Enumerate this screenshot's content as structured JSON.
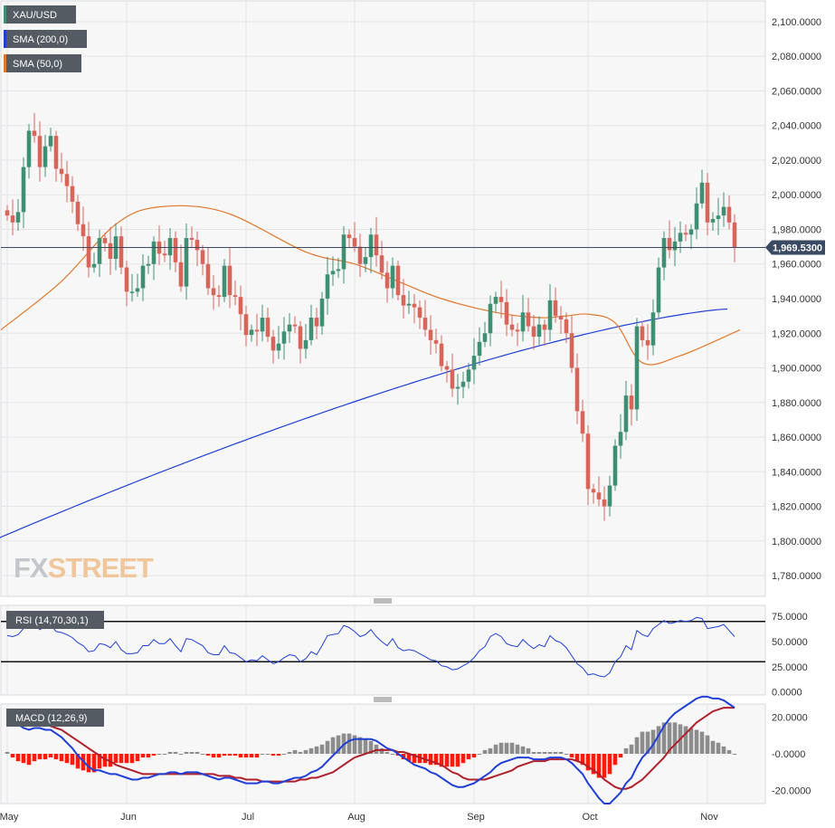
{
  "chart_data": [
    {
      "type": "candlestick",
      "symbol": "XAU/USD",
      "title": "XAU/USD",
      "colors": {
        "up": "#3f8f73",
        "down": "#d8655a",
        "sma200": "#1f3fd6",
        "sma50": "#e2782a",
        "price_tag": "#3a4a63"
      },
      "legend": [
        {
          "label": "XAU/USD",
          "color": "#3f8f73"
        },
        {
          "label": "SMA (200,0)",
          "color": "#1f3fd6"
        },
        {
          "label": "SMA (50,0)",
          "color": "#e2782a"
        }
      ],
      "last_price_label": "1,969.5300",
      "last_price": 1969.53,
      "y_ticks": [
        1780,
        1800,
        1820,
        1840,
        1860,
        1880,
        1900,
        1920,
        1940,
        1960,
        1980,
        2000,
        2020,
        2040,
        2060,
        2080,
        2100
      ],
      "y_tick_labels": [
        "1,780.0000",
        "1,800.0000",
        "1,820.0000",
        "1,840.0000",
        "1,860.0000",
        "1,880.0000",
        "1,900.0000",
        "1,920.0000",
        "1,940.0000",
        "1,960.0000",
        "1,980.0000",
        "2,000.0000",
        "2,020.0000",
        "2,040.0000",
        "2,060.0000",
        "2,080.0000",
        "2,100.0000"
      ],
      "ylim": [
        1768,
        2112
      ],
      "x_months": [
        "May",
        "Jun",
        "Jul",
        "Aug",
        "Sep",
        "Oct",
        "Nov"
      ],
      "month_start_index": [
        0,
        22,
        44,
        64,
        86,
        107,
        129
      ],
      "closes": [
        1988,
        1984,
        1990,
        2016,
        2037,
        2034,
        2016,
        2028,
        2034,
        2015,
        2012,
        2005,
        1996,
        1983,
        1976,
        1958,
        1960,
        1975,
        1972,
        1963,
        1976,
        1958,
        1944,
        1944,
        1946,
        1959,
        1960,
        1973,
        1966,
        1965,
        1975,
        1961,
        1947,
        1975,
        1974,
        1968,
        1960,
        1946,
        1942,
        1941,
        1959,
        1942,
        1941,
        1931,
        1919,
        1922,
        1921,
        1929,
        1918,
        1910,
        1914,
        1921,
        1925,
        1924,
        1911,
        1916,
        1929,
        1924,
        1940,
        1954,
        1956,
        1957,
        1977,
        1975,
        1970,
        1960,
        1964,
        1977,
        1965,
        1955,
        1946,
        1959,
        1942,
        1936,
        1937,
        1935,
        1929,
        1922,
        1916,
        1914,
        1901,
        1899,
        1888,
        1889,
        1892,
        1899,
        1907,
        1915,
        1920,
        1937,
        1941,
        1938,
        1925,
        1922,
        1921,
        1932,
        1924,
        1918,
        1925,
        1922,
        1939,
        1930,
        1928,
        1920,
        1900,
        1875,
        1862,
        1830,
        1828,
        1824,
        1820,
        1832,
        1855,
        1863,
        1884,
        1876,
        1924,
        1916,
        1913,
        1932,
        1958,
        1975,
        1968,
        1973,
        1978,
        1977,
        1980,
        1995,
        2007,
        1984,
        1986,
        1988,
        1993,
        1984,
        1969.53
      ],
      "sma200": {
        "from_index": 0,
        "start": 1802,
        "end": 1934,
        "dip_center": 107,
        "note": "slowly rising"
      },
      "sma50": [
        1922,
        1950,
        1983,
        1993,
        1990,
        1967,
        1960,
        1950,
        1940,
        1932,
        1929,
        1930,
        1931,
        1926,
        1903,
        1907,
        1922
      ],
      "sma50_index": [
        0,
        10,
        20,
        28,
        40,
        55,
        64,
        72,
        80,
        90,
        98,
        103,
        107,
        112,
        117,
        124,
        135
      ],
      "watermark": "FXSTREET"
    },
    {
      "type": "line",
      "title": "RSI (14,70,30,1)",
      "y_tick_labels": [
        "75.0000",
        "50.0000",
        "25.0000",
        "0.0000"
      ],
      "y_ticks": [
        75,
        50,
        25,
        0
      ],
      "overbought": 70,
      "oversold": 30,
      "ylim": [
        -3,
        86
      ],
      "color": "#1f3fd6",
      "values": [
        56,
        55,
        57,
        63,
        69,
        68,
        62,
        65,
        67,
        60,
        59,
        57,
        54,
        49,
        46,
        40,
        41,
        48,
        47,
        44,
        50,
        42,
        38,
        38,
        39,
        46,
        46,
        52,
        48,
        48,
        53,
        46,
        40,
        53,
        52,
        49,
        46,
        39,
        37,
        37,
        46,
        39,
        38,
        34,
        30,
        32,
        31,
        36,
        32,
        28,
        30,
        34,
        37,
        36,
        30,
        33,
        40,
        37,
        46,
        56,
        57,
        58,
        66,
        64,
        60,
        55,
        57,
        62,
        55,
        50,
        46,
        53,
        44,
        41,
        42,
        41,
        38,
        35,
        32,
        31,
        26,
        25,
        22,
        23,
        26,
        29,
        34,
        41,
        45,
        55,
        58,
        55,
        48,
        46,
        45,
        52,
        47,
        43,
        47,
        45,
        56,
        51,
        49,
        44,
        36,
        28,
        24,
        17,
        18,
        16,
        15,
        19,
        30,
        35,
        46,
        42,
        61,
        57,
        55,
        63,
        67,
        71,
        68,
        69,
        71,
        70,
        71,
        74,
        73,
        63,
        64,
        65,
        67,
        61,
        55
      ]
    },
    {
      "type": "bar+line",
      "title": "MACD (12,26,9)",
      "y_tick_labels": [
        "20.0000",
        "-0.0000",
        "-20.0000"
      ],
      "y_ticks": [
        20,
        0,
        -20
      ],
      "ylim": [
        -27,
        27
      ],
      "colors": {
        "macd": "#1f3fd6",
        "signal": "#b0202a",
        "hist_pos": "#8c8c8c",
        "hist_neg": "#ff1a0a"
      },
      "macd": [
        22,
        19,
        16,
        14,
        13,
        14,
        14,
        13,
        13,
        11,
        9,
        6,
        3,
        -1,
        -4,
        -7,
        -9,
        -9,
        -10,
        -11,
        -11,
        -12,
        -13,
        -14,
        -14,
        -13,
        -13,
        -12,
        -11,
        -11,
        -10,
        -10,
        -11,
        -10,
        -10,
        -10,
        -11,
        -12,
        -13,
        -14,
        -13,
        -13,
        -14,
        -15,
        -16,
        -16,
        -16,
        -15,
        -15,
        -16,
        -16,
        -15,
        -14,
        -13,
        -13,
        -12,
        -10,
        -9,
        -7,
        -4,
        -1,
        2,
        5,
        7,
        8,
        8,
        8,
        8,
        7,
        5,
        3,
        2,
        0,
        -2,
        -4,
        -6,
        -7,
        -8,
        -10,
        -11,
        -13,
        -15,
        -17,
        -18,
        -18,
        -17,
        -16,
        -14,
        -12,
        -10,
        -7,
        -5,
        -4,
        -3,
        -2,
        -2,
        -2,
        -3,
        -3,
        -3,
        -2,
        -2,
        -2,
        -3,
        -5,
        -8,
        -11,
        -16,
        -20,
        -24,
        -27,
        -27,
        -24,
        -21,
        -16,
        -13,
        -7,
        -2,
        1,
        5,
        10,
        15,
        19,
        22,
        24,
        26,
        28,
        30,
        31,
        31,
        30,
        30,
        29,
        27,
        25
      ],
      "signal": [
        21,
        21,
        20,
        19,
        19,
        18,
        17,
        16,
        15,
        14,
        13,
        11,
        9,
        7,
        5,
        3,
        1,
        -1,
        -3,
        -4,
        -6,
        -7,
        -8,
        -9,
        -10,
        -11,
        -11,
        -11,
        -11,
        -11,
        -11,
        -11,
        -11,
        -11,
        -11,
        -11,
        -11,
        -11,
        -11,
        -12,
        -12,
        -12,
        -13,
        -13,
        -14,
        -14,
        -14,
        -15,
        -15,
        -15,
        -15,
        -15,
        -15,
        -15,
        -14,
        -14,
        -13,
        -13,
        -12,
        -11,
        -10,
        -8,
        -6,
        -4,
        -2,
        -1,
        0,
        1,
        2,
        2,
        2,
        2,
        1,
        1,
        0,
        -1,
        -2,
        -3,
        -4,
        -5,
        -6,
        -8,
        -10,
        -11,
        -13,
        -14,
        -14,
        -14,
        -14,
        -13,
        -12,
        -11,
        -10,
        -9,
        -7,
        -6,
        -5,
        -4,
        -4,
        -4,
        -3,
        -3,
        -3,
        -3,
        -3,
        -4,
        -5,
        -7,
        -9,
        -11,
        -14,
        -16,
        -18,
        -19,
        -19,
        -18,
        -16,
        -14,
        -11,
        -8,
        -5,
        -2,
        2,
        5,
        8,
        11,
        14,
        17,
        19,
        21,
        23,
        24,
        25,
        25,
        25
      ]
    }
  ]
}
